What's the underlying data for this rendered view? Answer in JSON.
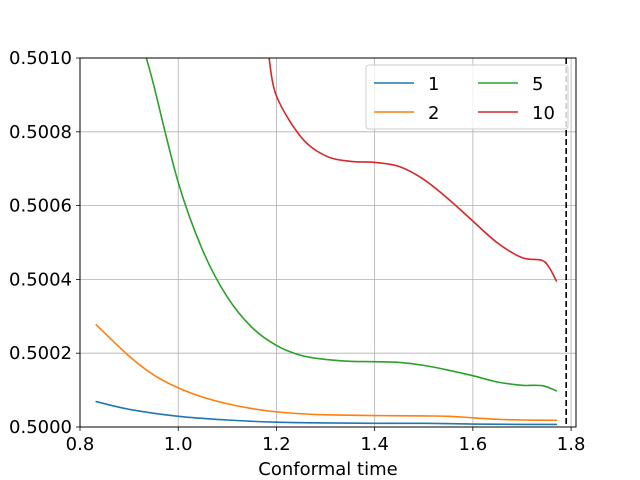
{
  "chart_data": {
    "type": "line",
    "title": "",
    "xlabel": "Conformal time",
    "ylabel": "",
    "xlim": [
      0.8,
      1.81
    ],
    "ylim": [
      0.5,
      0.501
    ],
    "xticks": [
      0.8,
      1.0,
      1.2,
      1.4,
      1.6,
      1.8
    ],
    "xtick_labels": [
      "0.8",
      "1.0",
      "1.2",
      "1.4",
      "1.6",
      "1.8"
    ],
    "yticks": [
      0.5,
      0.5002,
      0.5004,
      0.5006,
      0.5008,
      0.501
    ],
    "ytick_labels": [
      "0.5000",
      "0.5002",
      "0.5004",
      "0.5006",
      "0.5008",
      "0.5010"
    ],
    "grid": true,
    "legend_position": "top-right",
    "legend_columns": 2,
    "vline": {
      "x": 1.79,
      "style": "dashed",
      "color": "#000000"
    },
    "series": [
      {
        "name": "1",
        "color": "#1f77b4",
        "x": [
          0.833,
          0.9,
          1.0,
          1.1,
          1.2,
          1.3,
          1.4,
          1.5,
          1.6,
          1.7,
          1.77
        ],
        "y": [
          0.500069,
          0.500048,
          0.500029,
          0.500019,
          0.500013,
          0.500011,
          0.50001,
          0.50001,
          0.500008,
          0.500007,
          0.500007
        ]
      },
      {
        "name": "2",
        "color": "#ff7f0e",
        "x": [
          0.833,
          0.9,
          0.95,
          1.0,
          1.05,
          1.1,
          1.15,
          1.2,
          1.25,
          1.3,
          1.4,
          1.5,
          1.55,
          1.6,
          1.65,
          1.7,
          1.77
        ],
        "y": [
          0.500277,
          0.500192,
          0.500141,
          0.500106,
          0.500081,
          0.500063,
          0.50005,
          0.500041,
          0.500036,
          0.500033,
          0.500031,
          0.50003,
          0.500029,
          0.500025,
          0.500021,
          0.500019,
          0.500018
        ]
      },
      {
        "name": "5",
        "color": "#2ca02c",
        "x": [
          0.935,
          0.95,
          1.0,
          1.05,
          1.1,
          1.15,
          1.2,
          1.25,
          1.3,
          1.35,
          1.4,
          1.45,
          1.5,
          1.55,
          1.6,
          1.65,
          1.7,
          1.72,
          1.745,
          1.77
        ],
        "y": [
          0.501,
          0.500927,
          0.500663,
          0.500478,
          0.500352,
          0.50027,
          0.500221,
          0.500194,
          0.500183,
          0.500178,
          0.500177,
          0.500175,
          0.500167,
          0.500154,
          0.500139,
          0.500122,
          0.500113,
          0.500113,
          0.500111,
          0.500098
        ]
      },
      {
        "name": "10",
        "color": "#d62728",
        "x": [
          1.185,
          1.2,
          1.25,
          1.3,
          1.35,
          1.4,
          1.45,
          1.5,
          1.55,
          1.6,
          1.65,
          1.7,
          1.74,
          1.755,
          1.77
        ],
        "y": [
          0.501,
          0.500897,
          0.500786,
          0.500735,
          0.50072,
          0.500717,
          0.500706,
          0.500671,
          0.500618,
          0.500558,
          0.500499,
          0.500459,
          0.500452,
          0.500433,
          0.500396
        ]
      }
    ]
  }
}
